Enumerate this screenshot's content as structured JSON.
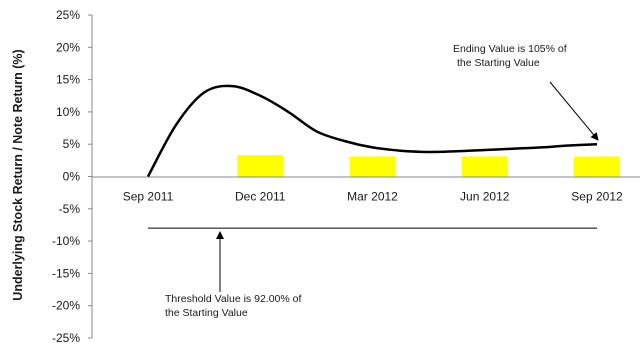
{
  "chart_data": {
    "type": "line",
    "ylabel": "Underlying Stock Return / Note Return (%)",
    "xlabel": "",
    "ylim": [
      -25,
      25
    ],
    "y_ticks": [
      "25%",
      "20%",
      "15%",
      "10%",
      "5%",
      "0%",
      "-5%",
      "-10%",
      "-15%",
      "-20%",
      "-25%"
    ],
    "y_tick_values": [
      25,
      20,
      15,
      10,
      5,
      0,
      -5,
      -10,
      -15,
      -20,
      -25
    ],
    "categories": [
      "Sep 2011",
      "Dec 2011",
      "Mar 2012",
      "Jun 2012",
      "Sep 2012"
    ],
    "grid": false,
    "series": [
      {
        "kind": "line",
        "color": "#000000",
        "x": [
          0,
          0.25,
          0.5,
          0.75,
          1.0,
          1.25,
          1.5,
          1.75,
          2.0,
          2.25,
          2.5,
          2.75,
          3.0,
          3.25,
          3.5,
          3.75,
          4.0
        ],
        "values": [
          0,
          8,
          13,
          14,
          12.5,
          10,
          7,
          5.5,
          4.5,
          4,
          3.8,
          3.9,
          4.1,
          4.3,
          4.5,
          4.8,
          5
        ]
      },
      {
        "kind": "bar",
        "color": "#ffff00",
        "x": [
          1,
          2,
          3,
          4
        ],
        "values": [
          3.3,
          3.1,
          3.1,
          3.1
        ]
      }
    ],
    "threshold": {
      "value": -8,
      "color": "#000000"
    },
    "annotations": [
      {
        "id": "ending",
        "lines": [
          "Ending Value is 105% of",
          "the Starting Value"
        ]
      },
      {
        "id": "threshold",
        "lines": [
          "Threshold Value is 92.00% of",
          "the Starting Value"
        ]
      }
    ]
  }
}
